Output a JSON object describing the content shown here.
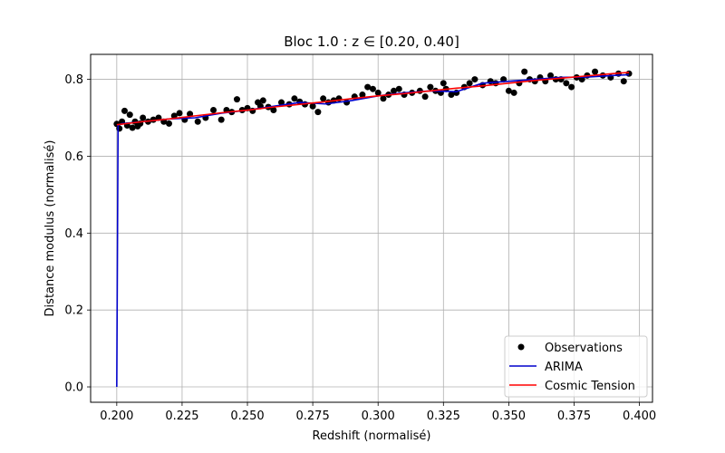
{
  "chart_data": {
    "type": "scatter",
    "title": "Bloc 1.0 : z ∈ [0.20, 0.40]",
    "xlabel": "Redshift (normalisé)",
    "ylabel": "Distance modulus (normalisé)",
    "xlim": [
      0.19,
      0.405
    ],
    "ylim": [
      -0.04,
      0.865
    ],
    "xticks": [
      0.2,
      0.225,
      0.25,
      0.275,
      0.3,
      0.325,
      0.35,
      0.375,
      0.4
    ],
    "xtick_labels": [
      "0.200",
      "0.225",
      "0.250",
      "0.275",
      "0.300",
      "0.325",
      "0.350",
      "0.375",
      "0.400"
    ],
    "yticks": [
      0.0,
      0.2,
      0.4,
      0.6,
      0.8
    ],
    "ytick_labels": [
      "0.0",
      "0.2",
      "0.4",
      "0.6",
      "0.8"
    ],
    "grid": true,
    "legend_position": "lower-right",
    "series": [
      {
        "name": "Observations",
        "kind": "scatter",
        "color": "#000000",
        "x": [
          0.2,
          0.201,
          0.202,
          0.203,
          0.204,
          0.205,
          0.206,
          0.207,
          0.208,
          0.209,
          0.21,
          0.212,
          0.214,
          0.216,
          0.218,
          0.22,
          0.222,
          0.224,
          0.226,
          0.228,
          0.231,
          0.234,
          0.237,
          0.24,
          0.242,
          0.244,
          0.246,
          0.248,
          0.25,
          0.252,
          0.254,
          0.255,
          0.256,
          0.258,
          0.26,
          0.263,
          0.266,
          0.268,
          0.27,
          0.272,
          0.275,
          0.277,
          0.279,
          0.281,
          0.283,
          0.285,
          0.288,
          0.291,
          0.294,
          0.296,
          0.298,
          0.3,
          0.302,
          0.304,
          0.306,
          0.308,
          0.31,
          0.313,
          0.316,
          0.318,
          0.32,
          0.322,
          0.324,
          0.325,
          0.326,
          0.328,
          0.33,
          0.333,
          0.335,
          0.337,
          0.34,
          0.343,
          0.345,
          0.348,
          0.35,
          0.352,
          0.354,
          0.356,
          0.358,
          0.36,
          0.362,
          0.364,
          0.366,
          0.368,
          0.37,
          0.372,
          0.374,
          0.376,
          0.378,
          0.38,
          0.383,
          0.386,
          0.389,
          0.392,
          0.394,
          0.396
        ],
        "y": [
          0.684,
          0.672,
          0.69,
          0.718,
          0.68,
          0.708,
          0.674,
          0.69,
          0.678,
          0.685,
          0.7,
          0.69,
          0.695,
          0.7,
          0.69,
          0.685,
          0.705,
          0.712,
          0.695,
          0.71,
          0.69,
          0.7,
          0.72,
          0.695,
          0.72,
          0.715,
          0.748,
          0.72,
          0.725,
          0.718,
          0.74,
          0.73,
          0.745,
          0.728,
          0.72,
          0.74,
          0.735,
          0.75,
          0.742,
          0.735,
          0.73,
          0.715,
          0.75,
          0.74,
          0.745,
          0.75,
          0.74,
          0.755,
          0.76,
          0.78,
          0.775,
          0.765,
          0.75,
          0.76,
          0.77,
          0.775,
          0.76,
          0.765,
          0.77,
          0.755,
          0.78,
          0.77,
          0.765,
          0.79,
          0.775,
          0.76,
          0.765,
          0.78,
          0.79,
          0.8,
          0.785,
          0.795,
          0.79,
          0.8,
          0.77,
          0.765,
          0.79,
          0.82,
          0.8,
          0.795,
          0.805,
          0.795,
          0.81,
          0.8,
          0.8,
          0.79,
          0.78,
          0.805,
          0.8,
          0.81,
          0.82,
          0.81,
          0.805,
          0.815,
          0.795,
          0.815
        ]
      },
      {
        "name": "ARIMA",
        "kind": "line",
        "color": "#0000cc",
        "x": [
          0.2,
          0.2005,
          0.202,
          0.21,
          0.22,
          0.23,
          0.24,
          0.25,
          0.26,
          0.27,
          0.28,
          0.29,
          0.3,
          0.31,
          0.32,
          0.33,
          0.34,
          0.35,
          0.36,
          0.37,
          0.38,
          0.39,
          0.396
        ],
        "y": [
          0.0,
          0.68,
          0.685,
          0.69,
          0.697,
          0.7,
          0.712,
          0.72,
          0.73,
          0.74,
          0.736,
          0.745,
          0.757,
          0.765,
          0.77,
          0.768,
          0.79,
          0.795,
          0.8,
          0.805,
          0.806,
          0.81,
          0.812
        ]
      },
      {
        "name": "Cosmic Tension",
        "kind": "line",
        "color": "#ff0000",
        "x": [
          0.2,
          0.21,
          0.22,
          0.23,
          0.24,
          0.25,
          0.26,
          0.27,
          0.28,
          0.29,
          0.3,
          0.31,
          0.32,
          0.33,
          0.34,
          0.35,
          0.36,
          0.37,
          0.38,
          0.39,
          0.396
        ],
        "y": [
          0.682,
          0.69,
          0.697,
          0.705,
          0.713,
          0.72,
          0.728,
          0.735,
          0.742,
          0.75,
          0.757,
          0.763,
          0.77,
          0.777,
          0.783,
          0.79,
          0.797,
          0.803,
          0.809,
          0.815,
          0.818
        ]
      }
    ]
  }
}
